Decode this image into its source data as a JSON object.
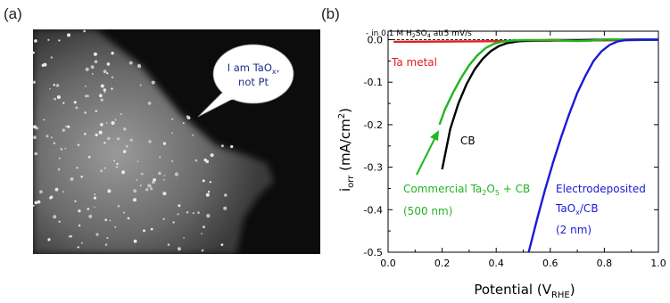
{
  "panels": {
    "a": "(a)",
    "b": "(b)"
  },
  "micrograph": {
    "bubble_line1": "I am TaO",
    "bubble_sub": "x",
    "bubble_line1_end": ",",
    "bubble_line2": "not Pt",
    "bubble_text_color": "#1f2f8a"
  },
  "chart_data": {
    "type": "line",
    "xlabel": "Potential (V",
    "xlabel_sub": "RHE",
    "xlabel_end": ")",
    "ylabel_i": "i",
    "ylabel_sub": "orr",
    "ylabel_rest": " (mA/cm",
    "ylabel_sup": "2",
    "ylabel_end": ")",
    "xlim": [
      0.0,
      1.0
    ],
    "ylim": [
      -0.5,
      0.02
    ],
    "xticks": [
      0.0,
      0.2,
      0.4,
      0.6,
      0.8,
      1.0
    ],
    "xtick_labels": [
      "0.0",
      "0.2",
      "0.4",
      "0.6",
      "0.8",
      "1.0"
    ],
    "yticks": [
      0.0,
      -0.1,
      -0.2,
      -0.3,
      -0.4,
      -0.5
    ],
    "ytick_labels": [
      "0.0",
      "-0.1",
      "-0.2",
      "-0.3",
      "-0.4",
      "-0.5"
    ],
    "condition_note": {
      "pre": "- in 0.1 M H",
      "sub1": "2",
      "mid1": "SO",
      "sub2": "4",
      "post": " at 5 mV/s"
    },
    "series": [
      {
        "name": "Ta metal",
        "color": "#e02020",
        "x": [
          0.02,
          0.3,
          0.5,
          0.7,
          0.9,
          1.0
        ],
        "y": [
          -0.005,
          -0.004,
          -0.003,
          -0.002,
          -0.001,
          0.0
        ]
      },
      {
        "name": "CB",
        "color": "#000000",
        "x": [
          0.2,
          0.23,
          0.26,
          0.29,
          0.32,
          0.35,
          0.38,
          0.41,
          0.44,
          0.48,
          0.52,
          0.6,
          0.7,
          0.8,
          0.9,
          1.0
        ],
        "y": [
          -0.305,
          -0.21,
          -0.15,
          -0.105,
          -0.07,
          -0.045,
          -0.027,
          -0.015,
          -0.008,
          -0.004,
          -0.002,
          -0.001,
          -0.001,
          0.0,
          0.0,
          0.0
        ]
      },
      {
        "name": "Commercial Ta2O5 + CB (500 nm)",
        "color": "#22b522",
        "x": [
          0.19,
          0.21,
          0.24,
          0.27,
          0.3,
          0.33,
          0.36,
          0.39,
          0.42,
          0.46,
          0.5,
          0.6,
          0.7,
          0.75,
          0.8,
          0.9,
          1.0
        ],
        "y": [
          -0.2,
          -0.165,
          -0.125,
          -0.09,
          -0.06,
          -0.037,
          -0.02,
          -0.01,
          -0.005,
          -0.002,
          -0.001,
          -0.001,
          -0.003,
          -0.002,
          0.0,
          0.0,
          0.0
        ]
      },
      {
        "name": "Electrodeposited TaOx/CB (2 nm)",
        "color": "#1a1ad6",
        "x": [
          0.52,
          0.55,
          0.58,
          0.61,
          0.64,
          0.67,
          0.7,
          0.73,
          0.76,
          0.79,
          0.82,
          0.85,
          0.88,
          0.92,
          0.96,
          1.0
        ],
        "y": [
          -0.5,
          -0.425,
          -0.355,
          -0.29,
          -0.23,
          -0.175,
          -0.125,
          -0.085,
          -0.05,
          -0.027,
          -0.012,
          -0.004,
          -0.001,
          0.0,
          0.0,
          0.0
        ]
      }
    ],
    "labels": {
      "ta_metal": "Ta metal",
      "cb": "CB",
      "commercial_pre": "Commercial Ta",
      "commercial_sub1": "2",
      "commercial_mid": "O",
      "commercial_sub2": "5",
      "commercial_post": " + CB",
      "commercial_size": "(500 nm)",
      "electro_line1": "Electrodeposited",
      "electro_pre": "TaO",
      "electro_sub": "x",
      "electro_post": "/CB",
      "electro_size": "(2 nm)"
    }
  }
}
